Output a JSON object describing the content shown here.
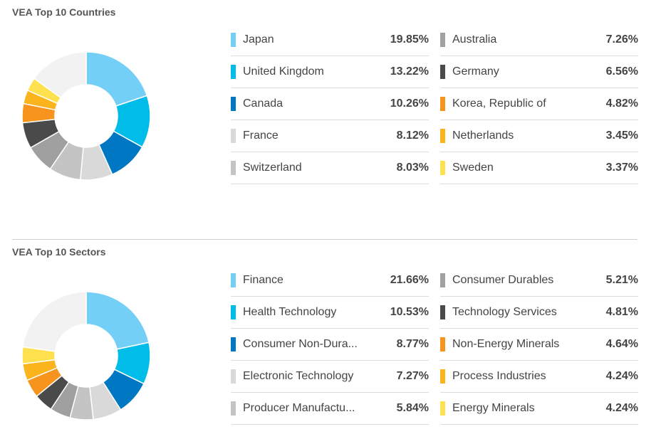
{
  "colors": [
    "#74cff7",
    "#00bce8",
    "#0077c2",
    "#d9d9d9",
    "#c4c4c4",
    "#a0a0a0",
    "#4a4a4a",
    "#f7941d",
    "#fbb41b",
    "#ffe14f"
  ],
  "remainder_color": "#f2f2f2",
  "countries": {
    "title": "VEA Top 10 Countries",
    "left": [
      {
        "label": "Japan",
        "value": "19.85%"
      },
      {
        "label": "United Kingdom",
        "value": "13.22%"
      },
      {
        "label": "Canada",
        "value": "10.26%"
      },
      {
        "label": "France",
        "value": "8.12%"
      },
      {
        "label": "Switzerland",
        "value": "8.03%"
      }
    ],
    "right": [
      {
        "label": "Australia",
        "value": "7.26%"
      },
      {
        "label": "Germany",
        "value": "6.56%"
      },
      {
        "label": "Korea, Republic of",
        "value": "4.82%"
      },
      {
        "label": "Netherlands",
        "value": "3.45%"
      },
      {
        "label": "Sweden",
        "value": "3.37%"
      }
    ]
  },
  "sectors": {
    "title": "VEA Top 10 Sectors",
    "left": [
      {
        "label": "Finance",
        "value": "21.66%"
      },
      {
        "label": "Health Technology",
        "value": "10.53%"
      },
      {
        "label": "Consumer Non-Dura...",
        "value": "8.77%"
      },
      {
        "label": "Electronic Technology",
        "value": "7.27%"
      },
      {
        "label": "Producer Manufactu...",
        "value": "5.84%"
      }
    ],
    "right": [
      {
        "label": "Consumer Durables",
        "value": "5.21%"
      },
      {
        "label": "Technology Services",
        "value": "4.81%"
      },
      {
        "label": "Non-Energy Minerals",
        "value": "4.64%"
      },
      {
        "label": "Process Industries",
        "value": "4.24%"
      },
      {
        "label": "Energy Minerals",
        "value": "4.24%"
      }
    ]
  },
  "chart_data": [
    {
      "type": "pie",
      "title": "VEA Top 10 Countries",
      "categories": [
        "Japan",
        "United Kingdom",
        "Canada",
        "France",
        "Switzerland",
        "Australia",
        "Germany",
        "Korea, Republic of",
        "Netherlands",
        "Sweden"
      ],
      "values": [
        19.85,
        13.22,
        10.26,
        8.12,
        8.03,
        7.26,
        6.56,
        4.82,
        3.45,
        3.37
      ]
    },
    {
      "type": "pie",
      "title": "VEA Top 10 Sectors",
      "categories": [
        "Finance",
        "Health Technology",
        "Consumer Non-Dura...",
        "Electronic Technology",
        "Producer Manufactu...",
        "Consumer Durables",
        "Technology Services",
        "Non-Energy Minerals",
        "Process Industries",
        "Energy Minerals"
      ],
      "values": [
        21.66,
        10.53,
        8.77,
        7.27,
        5.84,
        5.21,
        4.81,
        4.64,
        4.24,
        4.24
      ]
    }
  ]
}
